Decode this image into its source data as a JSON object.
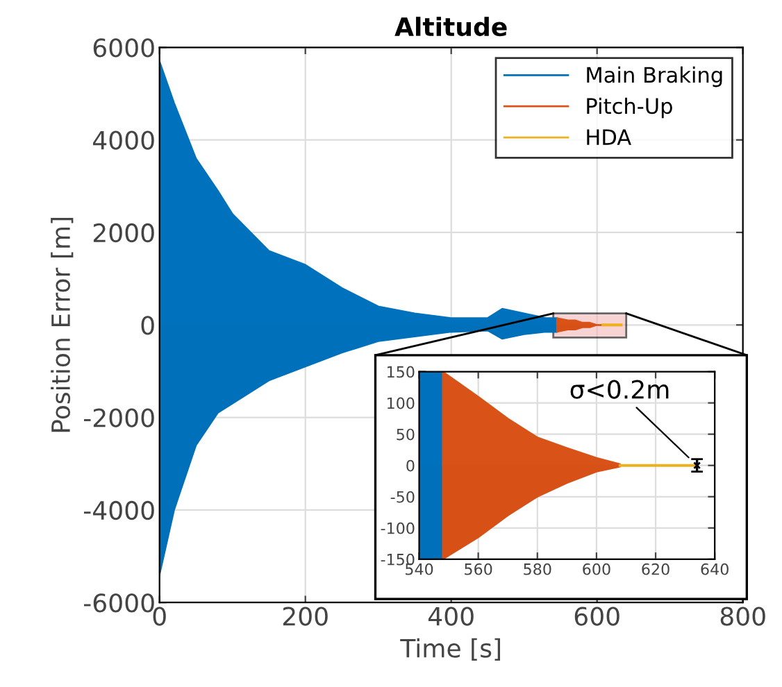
{
  "chart_data": [
    {
      "type": "area",
      "title": "Altitude",
      "xlabel": "Time [s]",
      "ylabel": "Position Error [m]",
      "xlim": [
        0,
        800
      ],
      "xticks": [
        0,
        200,
        400,
        600,
        800
      ],
      "ylim": [
        -6000,
        6000
      ],
      "yticks": [
        -6000,
        -4000,
        -2000,
        0,
        2000,
        4000,
        6000
      ],
      "grid": true,
      "legend": "top right",
      "series": [
        {
          "name": "Main Braking",
          "color": "#0072bd",
          "x": [
            0,
            20,
            50,
            80,
            100,
            150,
            200,
            250,
            300,
            350,
            400,
            450,
            470,
            500,
            530,
            545
          ],
          "values": [
            5700,
            4800,
            3600,
            2900,
            2400,
            1600,
            1300,
            800,
            400,
            250,
            150,
            150,
            350,
            250,
            150,
            150
          ]
        },
        {
          "color": "#0070ba",
          "x": [
            0,
            20,
            50,
            80,
            100,
            150,
            200,
            250,
            300,
            350,
            400,
            450,
            470,
            500,
            530,
            545
          ],
          "values": [
            -5400,
            -4000,
            -2600,
            -1900,
            -1700,
            -1200,
            -900,
            -600,
            -350,
            -250,
            -150,
            -120,
            -300,
            -200,
            -150,
            -150
          ]
        },
        {
          "name": "Pitch-Up",
          "color": "#d95319",
          "x": [
            545,
            560,
            570,
            580,
            590,
            600,
            608
          ],
          "values": [
            150,
            100,
            100,
            50,
            50,
            0,
            0
          ]
        },
        {
          "color": "#d75117",
          "x": [
            545,
            560,
            570,
            580,
            590,
            600,
            608
          ],
          "values": [
            -150,
            -100,
            -100,
            -50,
            -50,
            0,
            0
          ]
        },
        {
          "name": "HDA",
          "type": "line",
          "color": "#edb120",
          "x": [
            608,
            633
          ],
          "values": [
            0,
            0
          ]
        }
      ]
    },
    {
      "type": "area",
      "xlim": [
        540,
        640
      ],
      "xticks": [
        540,
        560,
        580,
        600,
        620,
        640
      ],
      "ylim": [
        -150,
        150
      ],
      "yticks": [
        -150,
        -100,
        -50,
        0,
        50,
        100,
        150
      ],
      "grid": true,
      "annotations": [
        {
          "text": "σ<0.2m",
          "x": 634,
          "y": 0
        }
      ],
      "series": [
        {
          "color": "#0072bd",
          "x": [
            540,
            548
          ],
          "values": [
            150,
            150
          ]
        },
        {
          "color": "#0070ba",
          "x": [
            540,
            548
          ],
          "values": [
            -150,
            -150
          ]
        },
        {
          "color": "#d95319",
          "x": [
            548,
            560,
            570,
            580,
            590,
            600,
            608
          ],
          "values": [
            150,
            110,
            75,
            45,
            28,
            12,
            2
          ]
        },
        {
          "color": "#d75117",
          "x": [
            548,
            560,
            570,
            580,
            590,
            600,
            608
          ],
          "values": [
            -150,
            -115,
            -80,
            -50,
            -28,
            -10,
            -2
          ]
        },
        {
          "type": "line",
          "color": "#edb120",
          "x": [
            608,
            633
          ],
          "values": [
            0,
            0
          ]
        },
        {
          "type": "scatter",
          "marker": "cross",
          "color": "#000000",
          "x": [
            634
          ],
          "values": [
            0
          ],
          "errors": [
            10
          ]
        }
      ]
    }
  ]
}
